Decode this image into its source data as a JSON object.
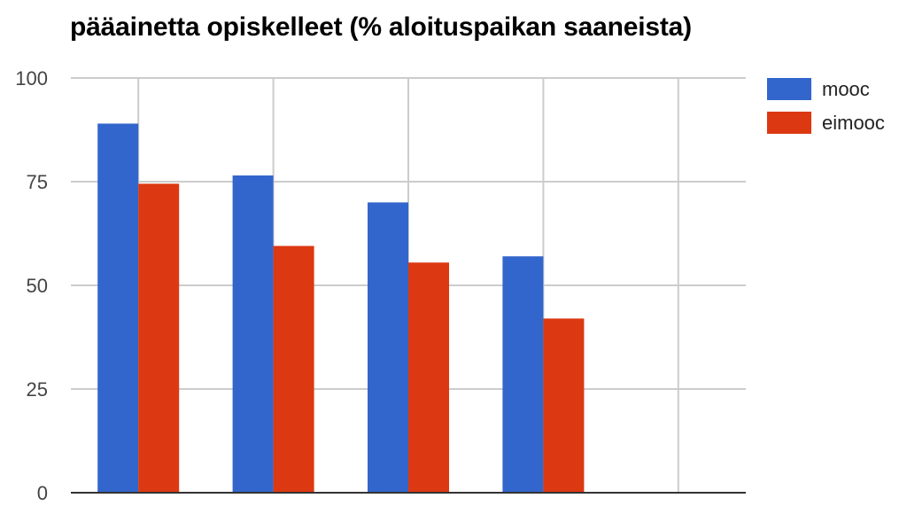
{
  "chart_data": {
    "type": "bar",
    "title": "pääainetta opiskelleet (% aloituspaikan saaneista)",
    "xlabel": "",
    "ylabel": "",
    "ylim": [
      0,
      100
    ],
    "yticks": [
      "0",
      "25",
      "50",
      "75",
      "100"
    ],
    "categories": [
      "",
      "",
      "",
      "",
      ""
    ],
    "series": [
      {
        "name": "mooc",
        "color": "#3366cc",
        "values": [
          89,
          76.5,
          70,
          57,
          0
        ]
      },
      {
        "name": "eimooc",
        "color": "#dc3912",
        "values": [
          74.5,
          59.5,
          55.5,
          42,
          0
        ]
      }
    ],
    "grid": true,
    "legend_position": "right"
  }
}
